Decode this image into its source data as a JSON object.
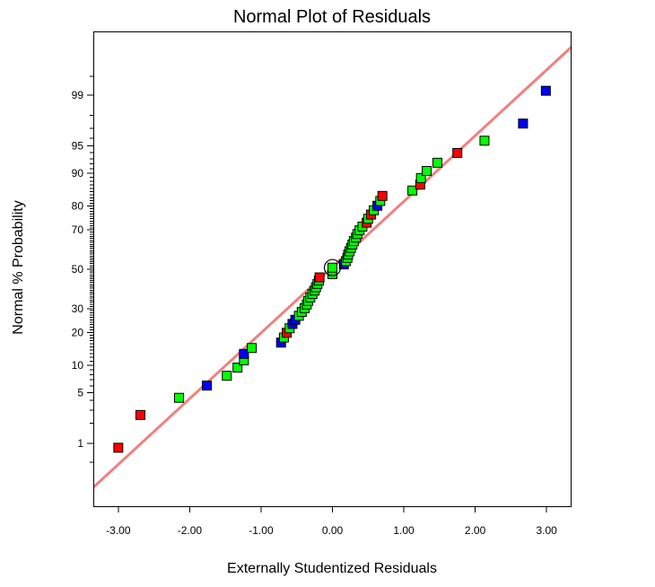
{
  "chart_data": {
    "type": "scatter",
    "title": "Normal Plot of Residuals",
    "xlabel": "Externally Studentized Residuals",
    "ylabel": "Normal % Probability",
    "xlim": [
      -3.35,
      3.35
    ],
    "ylim": [
      0.075,
      99.925
    ],
    "y_scale": "normal-probability",
    "grid": false,
    "x_ticks": [
      -3,
      -2,
      -1,
      0,
      1,
      2,
      3
    ],
    "x_tick_labels": [
      "-3.00",
      "-2.00",
      "-1.00",
      "0.00",
      "1.00",
      "2.00",
      "3.00"
    ],
    "y_ticks": [
      1,
      5,
      10,
      20,
      30,
      50,
      70,
      80,
      90,
      95,
      99
    ],
    "y_tick_labels": [
      "1",
      "5",
      "10",
      "20",
      "30",
      "50",
      "70",
      "80",
      "90",
      "95",
      "99"
    ],
    "y_minor_ticks": [
      0.5,
      2,
      3,
      4,
      6,
      7,
      8,
      9,
      11,
      12,
      13,
      14,
      15,
      16,
      17,
      18,
      19,
      21,
      22,
      23,
      24,
      25,
      26,
      27,
      28,
      29,
      31,
      32,
      33,
      34,
      35,
      36,
      37,
      38,
      39,
      40,
      41,
      42,
      43,
      44,
      45,
      46,
      47,
      48,
      49,
      51,
      52,
      53,
      54,
      55,
      56,
      57,
      58,
      59,
      60,
      61,
      62,
      63,
      64,
      65,
      66,
      67,
      68,
      69,
      71,
      72,
      73,
      74,
      75,
      76,
      77,
      78,
      79,
      81,
      82,
      83,
      84,
      85,
      86,
      87,
      88,
      89,
      91,
      92,
      93,
      94,
      96,
      97,
      98,
      99.5
    ],
    "reference_line": {
      "x": [
        -3,
        3
      ],
      "y": [
        0.46,
        99.61
      ],
      "color": "#f08080"
    },
    "points": [
      {
        "x": -3.0,
        "y": 0.86,
        "color": "#ff0000"
      },
      {
        "x": -2.69,
        "y": 2.59,
        "color": "#ff0000"
      },
      {
        "x": -2.15,
        "y": 4.31,
        "color": "#00ff00"
      },
      {
        "x": -1.76,
        "y": 6.03,
        "color": "#0000ff"
      },
      {
        "x": -1.48,
        "y": 7.76,
        "color": "#00ff00"
      },
      {
        "x": -1.33,
        "y": 9.48,
        "color": "#00ff00"
      },
      {
        "x": -1.24,
        "y": 11.21,
        "color": "#00ff00"
      },
      {
        "x": -1.24,
        "y": 12.93,
        "color": "#0000ff"
      },
      {
        "x": -1.13,
        "y": 14.66,
        "color": "#00ff00"
      },
      {
        "x": -0.72,
        "y": 16.38,
        "color": "#0000ff"
      },
      {
        "x": -0.68,
        "y": 18.1,
        "color": "#00ff00"
      },
      {
        "x": -0.64,
        "y": 19.83,
        "color": "#ff0000"
      },
      {
        "x": -0.6,
        "y": 21.55,
        "color": "#00ff00"
      },
      {
        "x": -0.56,
        "y": 23.28,
        "color": "#0000ff"
      },
      {
        "x": -0.52,
        "y": 25.0,
        "color": "#0000ff"
      },
      {
        "x": -0.47,
        "y": 26.72,
        "color": "#00ff00"
      },
      {
        "x": -0.43,
        "y": 28.45,
        "color": "#00ff00"
      },
      {
        "x": -0.39,
        "y": 30.17,
        "color": "#00ff00"
      },
      {
        "x": -0.36,
        "y": 31.9,
        "color": "#00ff00"
      },
      {
        "x": -0.34,
        "y": 33.62,
        "color": "#00ff00"
      },
      {
        "x": -0.31,
        "y": 35.34,
        "color": "#00ff00"
      },
      {
        "x": -0.28,
        "y": 37.07,
        "color": "#00ff00"
      },
      {
        "x": -0.25,
        "y": 38.79,
        "color": "#00ff00"
      },
      {
        "x": -0.23,
        "y": 40.52,
        "color": "#00ff00"
      },
      {
        "x": -0.21,
        "y": 42.24,
        "color": "#00ff00"
      },
      {
        "x": -0.19,
        "y": 43.97,
        "color": "#00ff00"
      },
      {
        "x": -0.18,
        "y": 45.69,
        "color": "#ff0000"
      },
      {
        "x": 0.0,
        "y": 47.41,
        "color": "#00ff00"
      },
      {
        "x": 0.0,
        "y": 49.14,
        "color": "#00ff00"
      },
      {
        "x": 0.0,
        "y": 50.86,
        "color": "#00ff00"
      },
      {
        "x": 0.16,
        "y": 52.59,
        "color": "#0000ff"
      },
      {
        "x": 0.19,
        "y": 54.31,
        "color": "#00ff00"
      },
      {
        "x": 0.21,
        "y": 56.03,
        "color": "#00ff00"
      },
      {
        "x": 0.22,
        "y": 57.76,
        "color": "#00ff00"
      },
      {
        "x": 0.24,
        "y": 59.48,
        "color": "#00ff00"
      },
      {
        "x": 0.26,
        "y": 61.21,
        "color": "#00ff00"
      },
      {
        "x": 0.28,
        "y": 62.93,
        "color": "#00ff00"
      },
      {
        "x": 0.3,
        "y": 64.66,
        "color": "#00ff00"
      },
      {
        "x": 0.33,
        "y": 66.38,
        "color": "#00ff00"
      },
      {
        "x": 0.35,
        "y": 68.1,
        "color": "#00ff00"
      },
      {
        "x": 0.38,
        "y": 69.83,
        "color": "#00ff00"
      },
      {
        "x": 0.42,
        "y": 71.55,
        "color": "#00ff00"
      },
      {
        "x": 0.48,
        "y": 73.28,
        "color": "#ff0000"
      },
      {
        "x": 0.5,
        "y": 75.0,
        "color": "#00ff00"
      },
      {
        "x": 0.54,
        "y": 76.72,
        "color": "#ff0000"
      },
      {
        "x": 0.58,
        "y": 78.45,
        "color": "#00ff00"
      },
      {
        "x": 0.63,
        "y": 80.17,
        "color": "#0000ff"
      },
      {
        "x": 0.67,
        "y": 81.9,
        "color": "#00ff00"
      },
      {
        "x": 0.7,
        "y": 83.62,
        "color": "#ff0000"
      },
      {
        "x": 1.12,
        "y": 85.34,
        "color": "#00ff00"
      },
      {
        "x": 1.23,
        "y": 87.07,
        "color": "#ff0000"
      },
      {
        "x": 1.24,
        "y": 88.79,
        "color": "#00ff00"
      },
      {
        "x": 1.32,
        "y": 90.52,
        "color": "#00ff00"
      },
      {
        "x": 1.47,
        "y": 92.24,
        "color": "#00ff00"
      },
      {
        "x": 1.75,
        "y": 93.97,
        "color": "#ff0000"
      },
      {
        "x": 2.13,
        "y": 95.69,
        "color": "#00ff00"
      },
      {
        "x": 2.67,
        "y": 97.41,
        "color": "#0000ff"
      },
      {
        "x": 2.99,
        "y": 99.14,
        "color": "#0000ff"
      }
    ],
    "circled_point": {
      "x": 0.0,
      "y": 50.86
    }
  }
}
